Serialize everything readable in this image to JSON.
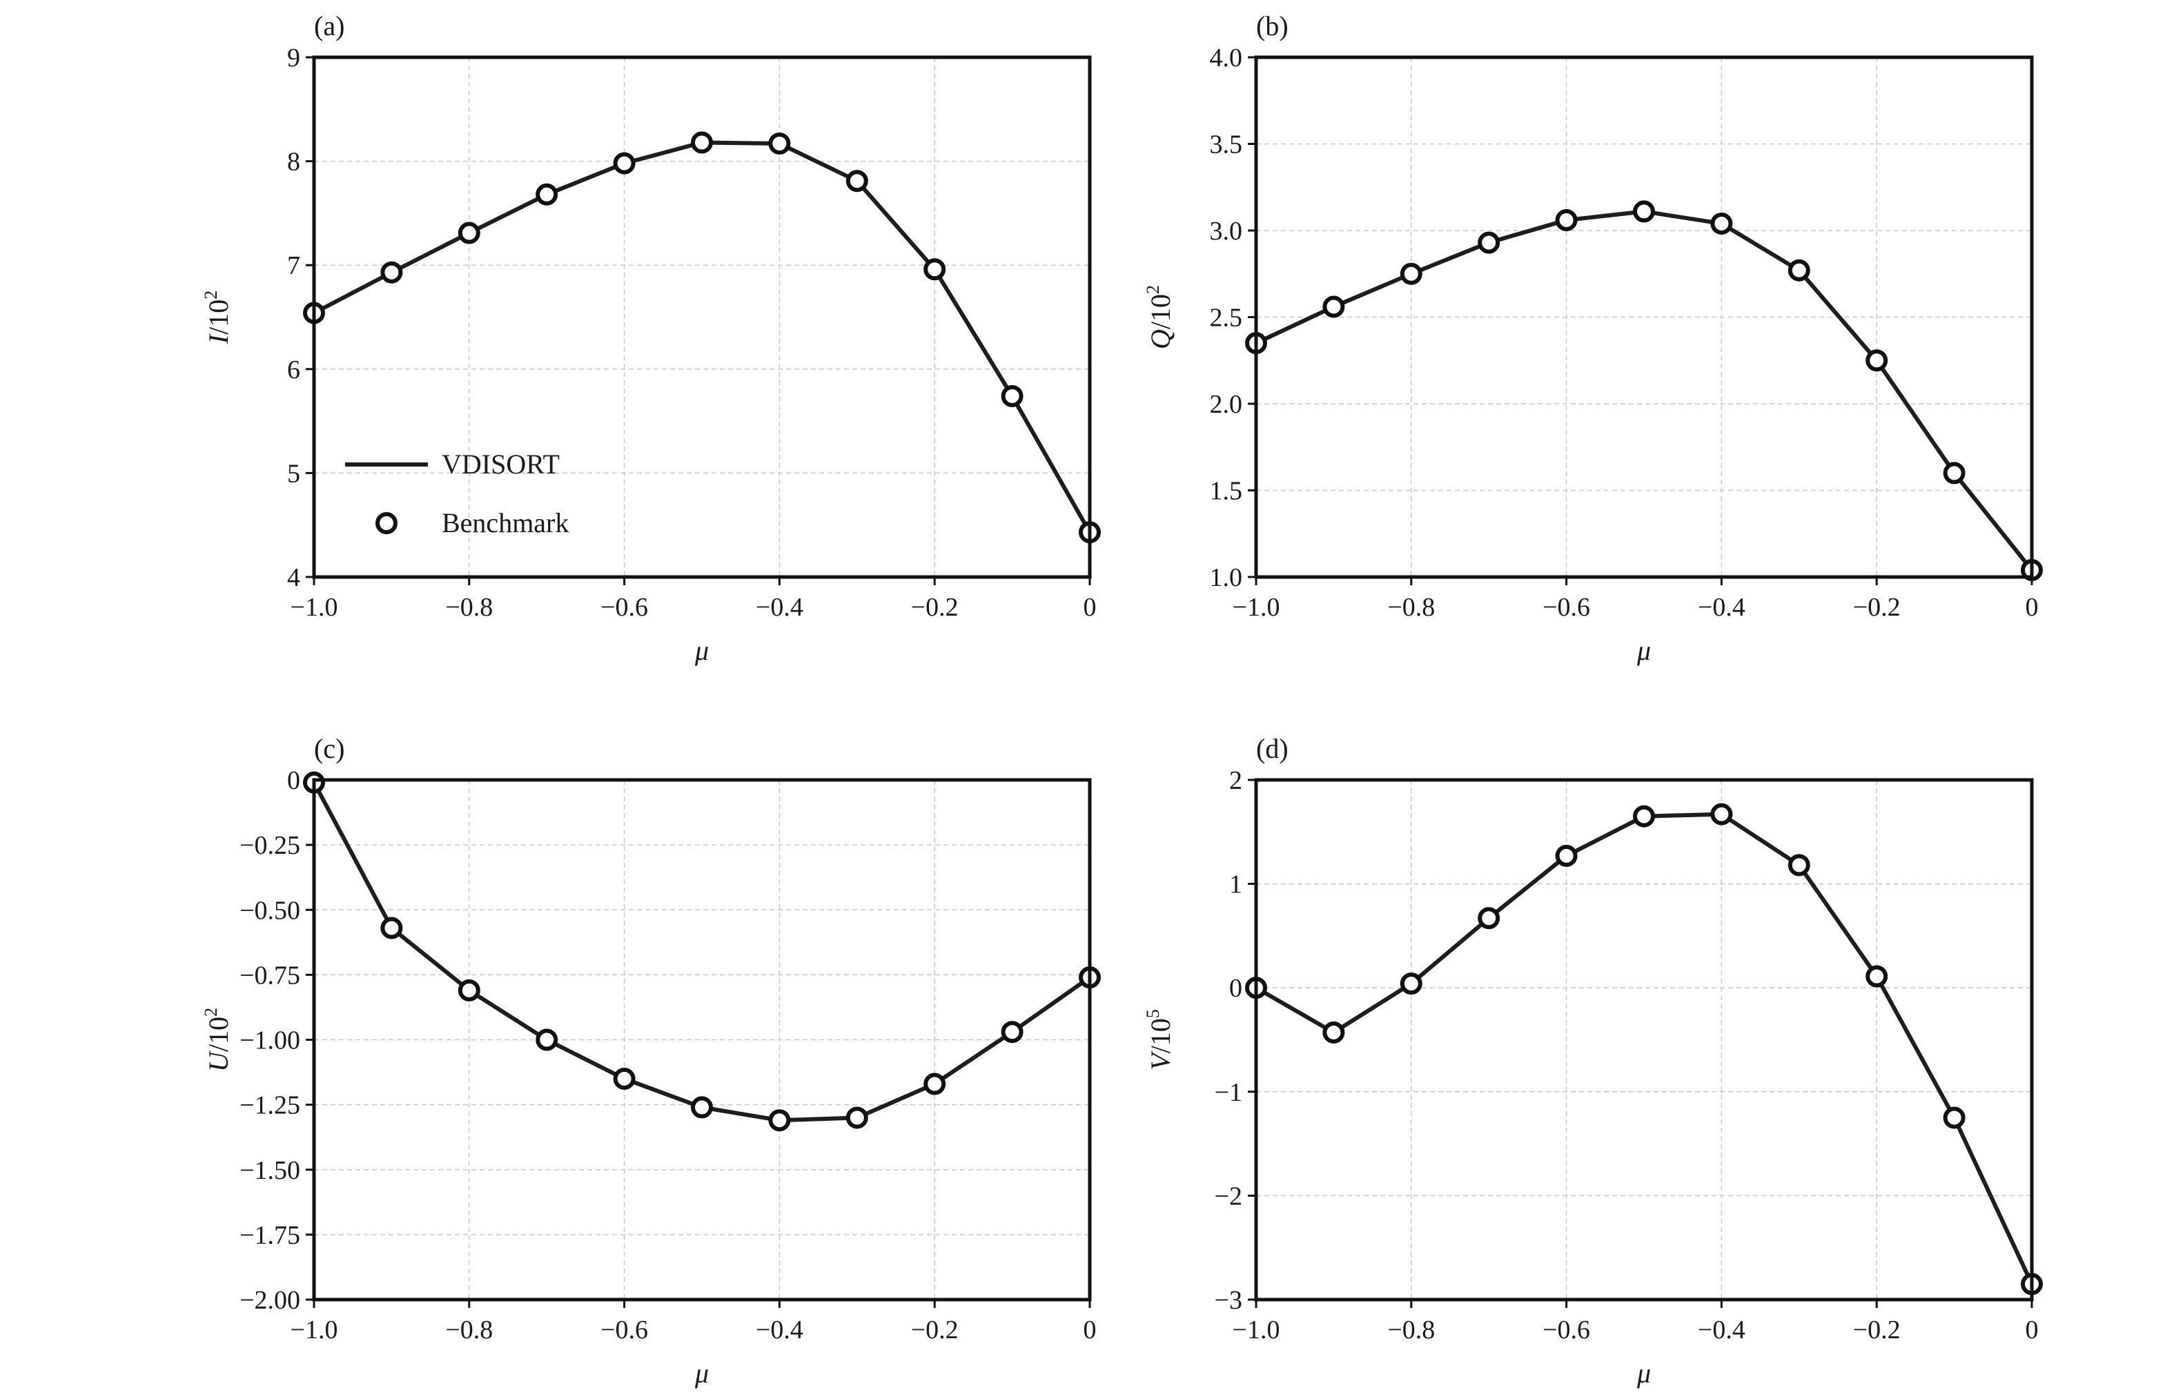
{
  "chart_data": [
    {
      "type": "line",
      "panel_label": "(a)",
      "xlabel": "μ",
      "ylabel_var": "I",
      "ylabel_unit": "/10",
      "ylabel_exp": "2",
      "xlim": [
        -1.0,
        0
      ],
      "ylim": [
        4,
        9
      ],
      "grid": true,
      "x_ticks": [
        -1.0,
        -0.8,
        -0.6,
        -0.4,
        -0.2,
        0
      ],
      "x_tick_labels": [
        "−1.0",
        "−0.8",
        "−0.6",
        "−0.4",
        "−0.2",
        "0"
      ],
      "y_ticks": [
        4,
        5,
        6,
        7,
        8,
        9
      ],
      "y_tick_labels": [
        "4",
        "5",
        "6",
        "7",
        "8",
        "9"
      ],
      "legend": {
        "placement": "lower-left",
        "entries": [
          {
            "label": "VDISORT",
            "style": "line"
          },
          {
            "label": "Benchmark",
            "style": "marker"
          }
        ]
      },
      "x": [
        -1.0,
        -0.9,
        -0.8,
        -0.7,
        -0.6,
        -0.5,
        -0.4,
        -0.3,
        -0.2,
        -0.1,
        0
      ],
      "series": [
        {
          "name": "VDISORT",
          "style": "line",
          "values": [
            6.54,
            6.93,
            7.31,
            7.68,
            7.98,
            8.18,
            8.17,
            7.81,
            6.96,
            5.74,
            4.43
          ]
        },
        {
          "name": "Benchmark",
          "style": "marker",
          "values": [
            6.54,
            6.93,
            7.31,
            7.68,
            7.98,
            8.18,
            8.17,
            7.81,
            6.96,
            5.74,
            4.43
          ]
        }
      ]
    },
    {
      "type": "line",
      "panel_label": "(b)",
      "xlabel": "μ",
      "ylabel_var": "Q",
      "ylabel_unit": "/10",
      "ylabel_exp": "2",
      "xlim": [
        -1.0,
        0
      ],
      "ylim": [
        1.0,
        4.0
      ],
      "grid": true,
      "x_ticks": [
        -1.0,
        -0.8,
        -0.6,
        -0.4,
        -0.2,
        0
      ],
      "x_tick_labels": [
        "−1.0",
        "−0.8",
        "−0.6",
        "−0.4",
        "−0.2",
        "0"
      ],
      "y_ticks": [
        1.0,
        1.5,
        2.0,
        2.5,
        3.0,
        3.5,
        4.0
      ],
      "y_tick_labels": [
        "1.0",
        "1.5",
        "2.0",
        "2.5",
        "3.0",
        "3.5",
        "4.0"
      ],
      "x": [
        -1.0,
        -0.9,
        -0.8,
        -0.7,
        -0.6,
        -0.5,
        -0.4,
        -0.3,
        -0.2,
        -0.1,
        0
      ],
      "series": [
        {
          "name": "VDISORT",
          "style": "line",
          "values": [
            2.35,
            2.56,
            2.75,
            2.93,
            3.06,
            3.11,
            3.04,
            2.77,
            2.25,
            1.6,
            1.04
          ]
        },
        {
          "name": "Benchmark",
          "style": "marker",
          "values": [
            2.35,
            2.56,
            2.75,
            2.93,
            3.06,
            3.11,
            3.04,
            2.77,
            2.25,
            1.6,
            1.04
          ]
        }
      ]
    },
    {
      "type": "line",
      "panel_label": "(c)",
      "xlabel": "μ",
      "ylabel_var": "U",
      "ylabel_unit": "/10",
      "ylabel_exp": "2",
      "xlim": [
        -1.0,
        0
      ],
      "ylim": [
        -2.0,
        0
      ],
      "grid": true,
      "x_ticks": [
        -1.0,
        -0.8,
        -0.6,
        -0.4,
        -0.2,
        0
      ],
      "x_tick_labels": [
        "−1.0",
        "−0.8",
        "−0.6",
        "−0.4",
        "−0.2",
        "0"
      ],
      "y_ticks": [
        -2.0,
        -1.75,
        -1.5,
        -1.25,
        -1.0,
        -0.75,
        -0.5,
        -0.25,
        0
      ],
      "y_tick_labels": [
        "−2.00",
        "−1.75",
        "−1.50",
        "−1.25",
        "−1.00",
        "−0.75",
        "−0.50",
        "−0.25",
        "0"
      ],
      "x": [
        -1.0,
        -0.9,
        -0.8,
        -0.7,
        -0.6,
        -0.5,
        -0.4,
        -0.3,
        -0.2,
        -0.1,
        0
      ],
      "series": [
        {
          "name": "VDISORT",
          "style": "line",
          "values": [
            -0.01,
            -0.57,
            -0.81,
            -1.0,
            -1.15,
            -1.26,
            -1.31,
            -1.3,
            -1.17,
            -0.97,
            -0.76
          ]
        },
        {
          "name": "Benchmark",
          "style": "marker",
          "values": [
            -0.01,
            -0.57,
            -0.81,
            -1.0,
            -1.15,
            -1.26,
            -1.31,
            -1.3,
            -1.17,
            -0.97,
            -0.76
          ]
        }
      ]
    },
    {
      "type": "line",
      "panel_label": "(d)",
      "xlabel": "μ",
      "ylabel_var": "V",
      "ylabel_unit": "/10",
      "ylabel_exp": "5",
      "xlim": [
        -1.0,
        0
      ],
      "ylim": [
        -3,
        2
      ],
      "grid": true,
      "x_ticks": [
        -1.0,
        -0.8,
        -0.6,
        -0.4,
        -0.2,
        0
      ],
      "x_tick_labels": [
        "−1.0",
        "−0.8",
        "−0.6",
        "−0.4",
        "−0.2",
        "0"
      ],
      "y_ticks": [
        -3,
        -2,
        -1,
        0,
        1,
        2
      ],
      "y_tick_labels": [
        "−3",
        "−2",
        "−1",
        "0",
        "1",
        "2"
      ],
      "x": [
        -1.0,
        -0.9,
        -0.8,
        -0.7,
        -0.6,
        -0.5,
        -0.4,
        -0.3,
        -0.2,
        -0.1,
        0
      ],
      "series": [
        {
          "name": "VDISORT",
          "style": "line",
          "values": [
            0.0,
            -0.43,
            0.04,
            0.67,
            1.27,
            1.65,
            1.67,
            1.18,
            0.11,
            -1.25,
            -2.85
          ]
        },
        {
          "name": "Benchmark",
          "style": "marker",
          "values": [
            0.0,
            -0.43,
            0.04,
            0.67,
            1.27,
            1.65,
            1.67,
            1.18,
            0.11,
            -1.25,
            -2.85
          ]
        }
      ]
    }
  ]
}
